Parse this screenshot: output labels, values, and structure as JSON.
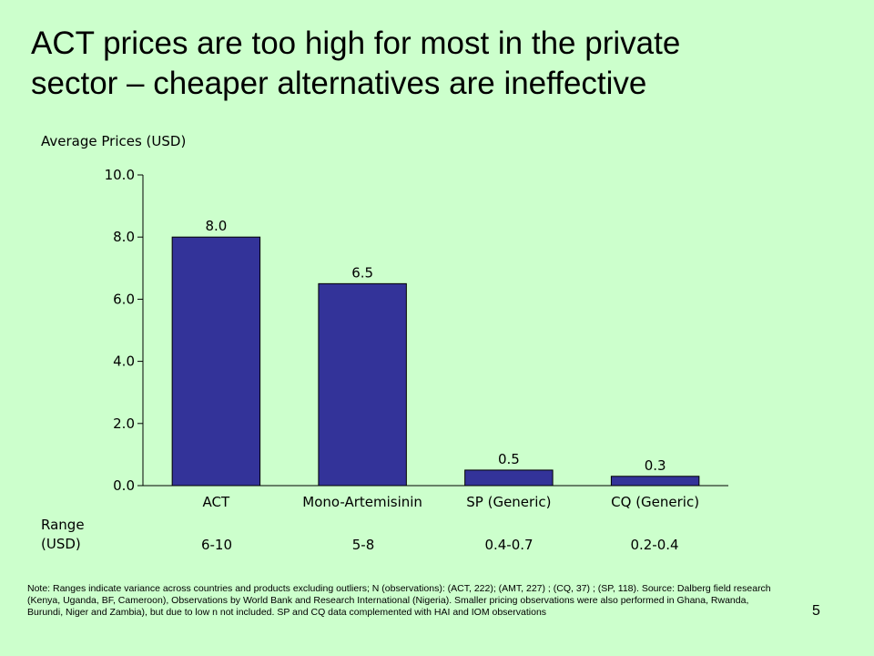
{
  "slide": {
    "title_line1": "ACT prices are too high for most in the private",
    "title_line2": "sector – cheaper alternatives are ineffective",
    "page_number": "5",
    "note": "Note: Ranges indicate variance across countries and products excluding outliers; N (observations): (ACT, 222); (AMT, 227) ; (CQ, 37) ; (SP, 118).  Source: Dalberg field research (Kenya, Uganda, BF, Cameroon), Observations by World Bank and Research International (Nigeria). Smaller pricing observations were also performed in Ghana, Rwanda, Burundi, Niger and Zambia), but due to low n not included. SP and CQ data complemented with HAI and IOM observations"
  },
  "range": {
    "label_line1": "Range",
    "label_line2": "(USD)",
    "values": [
      "6-10",
      "5-8",
      "0.4-0.7",
      "0.2-0.4"
    ]
  },
  "chart_data": {
    "type": "bar",
    "title": "",
    "xlabel": "",
    "ylabel": "Average Prices (USD)",
    "categories": [
      "ACT",
      "Mono-Artemisinin",
      "SP (Generic)",
      "CQ (Generic)"
    ],
    "values": [
      8.0,
      6.5,
      0.5,
      0.3
    ],
    "data_labels": [
      "8.0",
      "6.5",
      "0.5",
      "0.3"
    ],
    "ylim": [
      0,
      10
    ],
    "yticks": [
      0,
      2,
      4,
      6,
      8,
      10
    ],
    "ytick_labels": [
      "0.0",
      "2.0",
      "4.0",
      "6.0",
      "8.0",
      "10.0"
    ],
    "bar_color": "#333399",
    "grid": false,
    "legend": "none"
  }
}
